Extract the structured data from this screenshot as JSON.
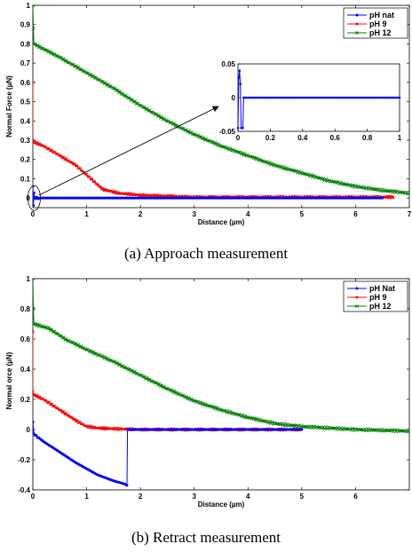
{
  "captions": {
    "a": "(a) Approach measurement",
    "b": "(b) Retract measurement"
  },
  "colors": {
    "blue": "#0000ff",
    "red": "#ff0000",
    "green": "#008000"
  },
  "chart_data": [
    {
      "id": "approach",
      "type": "line",
      "title": "",
      "xlabel": "Distance (µm)",
      "ylabel": "Normal Force (µN)",
      "xlim": [
        0,
        7
      ],
      "ylim": [
        -0.05,
        1
      ],
      "xticks": [
        "0",
        "1",
        "2",
        "3",
        "4",
        "5",
        "6",
        "7"
      ],
      "xtick_values": [
        0,
        1,
        2,
        3,
        4,
        5,
        6,
        7
      ],
      "yticks": [
        "0",
        "0.1",
        "0.2",
        "0.3",
        "0.4",
        "0.5",
        "0.6",
        "0.7",
        "0.8",
        "0.9",
        "1"
      ],
      "ytick_values": [
        0,
        0.1,
        0.2,
        0.3,
        0.4,
        0.5,
        0.6,
        0.7,
        0.8,
        0.9,
        1
      ],
      "legend_position": "top-right",
      "series": [
        {
          "name": "pH nat",
          "color": "#0000ff",
          "marker": "dot",
          "x": [
            0,
            0.01,
            0.02,
            0.03,
            0.05,
            0.5,
            1,
            2,
            3,
            4,
            5,
            6,
            6.5
          ],
          "y": [
            0.06,
            -0.04,
            0.03,
            0.0,
            0.0,
            0.0,
            0.0,
            0.0,
            0.0,
            0.0,
            0.0,
            0.0,
            0.0
          ]
        },
        {
          "name": "pH 9",
          "color": "#ff0000",
          "marker": "square",
          "x": [
            0,
            0,
            0.02,
            0.2,
            0.5,
            0.8,
            1.0,
            1.2,
            1.3,
            1.6,
            2.0,
            2.5,
            3.0,
            4.0,
            5.0,
            6.0,
            6.7
          ],
          "y": [
            0.6,
            0.3,
            0.29,
            0.27,
            0.22,
            0.17,
            0.12,
            0.07,
            0.045,
            0.025,
            0.015,
            0.01,
            0.005,
            0.005,
            0.005,
            0.005,
            0.005
          ]
        },
        {
          "name": "pH 12",
          "color": "#008000",
          "marker": "x",
          "x": [
            0,
            0.01,
            0.02,
            0.5,
            1.0,
            1.5,
            2.0,
            2.5,
            3.0,
            3.5,
            4.0,
            4.5,
            5.0,
            5.5,
            6.0,
            6.5,
            7.0
          ],
          "y": [
            1.0,
            0.88,
            0.8,
            0.73,
            0.65,
            0.57,
            0.48,
            0.4,
            0.33,
            0.27,
            0.22,
            0.17,
            0.13,
            0.09,
            0.06,
            0.04,
            0.025
          ]
        }
      ],
      "annotation": "arrow from origin region to inset",
      "inset": {
        "xlim": [
          0,
          1
        ],
        "ylim": [
          -0.05,
          0.05
        ],
        "xticks": [
          "0",
          "0.2",
          "0.4",
          "0.6",
          "0.8",
          "1"
        ],
        "xtick_values": [
          0,
          0.2,
          0.4,
          0.6,
          0.8,
          1
        ],
        "yticks": [
          "-0.05",
          "0",
          "0.05"
        ],
        "ytick_values": [
          -0.05,
          0,
          0.05
        ],
        "series": [
          {
            "name": "pH nat",
            "color": "#0000ff",
            "x": [
              0,
              0.005,
              0.01,
              0.015,
              0.02,
              0.025,
              0.03,
              0.035,
              0.04,
              0.06,
              0.1,
              0.2,
              0.3,
              0.4,
              0.5,
              0.6,
              0.7,
              0.8,
              0.9,
              1.0
            ],
            "y": [
              -0.045,
              0.03,
              0.04,
              0.02,
              -0.045,
              -0.045,
              -0.045,
              0.0,
              0.0,
              0.0,
              0.0,
              0.0,
              0.0,
              0.0,
              0.0,
              0.0,
              0.0,
              0.0,
              0.0,
              0.0
            ]
          }
        ]
      }
    },
    {
      "id": "retract",
      "type": "line",
      "title": "",
      "xlabel": "Distance (µm)",
      "ylabel": "Normal orce (µN)",
      "xlim": [
        0,
        7
      ],
      "ylim": [
        -0.4,
        1
      ],
      "xticks": [
        "0",
        "1",
        "2",
        "3",
        "4",
        "5",
        "6"
      ],
      "xtick_values": [
        0,
        1,
        2,
        3,
        4,
        5,
        6
      ],
      "yticks": [
        "-0.4",
        "-0.2",
        "0",
        "0.2",
        "0.4",
        "0.6",
        "0.8",
        "1"
      ],
      "ytick_values": [
        -0.4,
        -0.2,
        0,
        0.2,
        0.4,
        0.6,
        0.8,
        1
      ],
      "legend_position": "top-right",
      "series": [
        {
          "name": "pH Nat",
          "color": "#0000ff",
          "marker": "dot",
          "x": [
            0,
            0.02,
            0.2,
            0.5,
            0.8,
            1.0,
            1.2,
            1.5,
            1.7,
            1.75,
            1.76,
            1.78,
            2.0,
            3.0,
            4.0,
            4.6,
            5.0
          ],
          "y": [
            0.05,
            -0.03,
            -0.08,
            -0.15,
            -0.22,
            -0.26,
            -0.3,
            -0.34,
            -0.36,
            -0.37,
            0.0,
            0.0,
            0.0,
            0.0,
            0.0,
            0.0,
            0.0
          ]
        },
        {
          "name": "pH 9",
          "color": "#ff0000",
          "marker": "square",
          "x": [
            0,
            0,
            0.02,
            0.2,
            0.5,
            0.8,
            1.0,
            1.2,
            1.5,
            2.0,
            3.0,
            4.0,
            5.0
          ],
          "y": [
            0.65,
            0.25,
            0.23,
            0.2,
            0.13,
            0.06,
            0.02,
            0.01,
            0.005,
            0.0,
            0.0,
            0.0,
            0.0
          ]
        },
        {
          "name": "pH 12",
          "color": "#008000",
          "marker": "x",
          "x": [
            0,
            0.01,
            0.02,
            0.3,
            0.6,
            1.0,
            1.5,
            2.0,
            2.5,
            3.0,
            3.5,
            4.0,
            4.5,
            5.0,
            5.5,
            6.0,
            6.5,
            7.0
          ],
          "y": [
            1.0,
            0.8,
            0.7,
            0.67,
            0.6,
            0.53,
            0.45,
            0.36,
            0.27,
            0.19,
            0.13,
            0.08,
            0.04,
            0.02,
            0.01,
            0.0,
            -0.005,
            -0.01
          ]
        }
      ]
    }
  ]
}
